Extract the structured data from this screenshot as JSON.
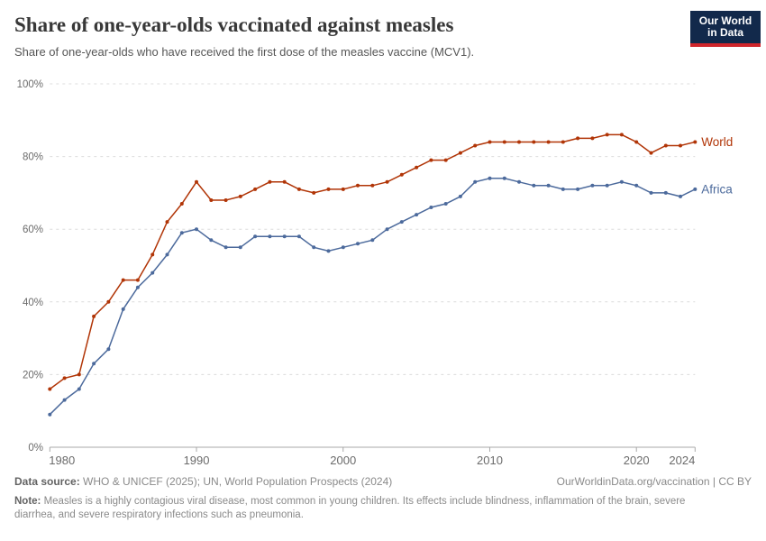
{
  "header": {
    "title": "Share of one-year-olds vaccinated against measles",
    "subtitle": "Share of one-year-olds who have received the first dose of the measles vaccine (MCV1).",
    "logo": {
      "line1": "Our World",
      "line2": "in Data",
      "bg_color": "#12294B",
      "stripe_color": "#D0262C"
    }
  },
  "chart_data": {
    "type": "line",
    "title": "Share of one-year-olds vaccinated against measles",
    "xlabel": "",
    "ylabel": "",
    "ylim": [
      0,
      100
    ],
    "yticks": [
      0,
      20,
      40,
      60,
      80,
      100
    ],
    "y_tick_labels": [
      "0%",
      "20%",
      "40%",
      "60%",
      "80%",
      "100%"
    ],
    "xticks": [
      1980,
      1990,
      2000,
      2010,
      2020,
      2024
    ],
    "x_tick_labels": [
      "1980",
      "1990",
      "2000",
      "2010",
      "2020",
      "2024"
    ],
    "grid": "horizontal-dashed",
    "legend_position": "line-end-labels",
    "x": [
      1980,
      1981,
      1982,
      1983,
      1984,
      1985,
      1986,
      1987,
      1988,
      1989,
      1990,
      1991,
      1992,
      1993,
      1994,
      1995,
      1996,
      1997,
      1998,
      1999,
      2000,
      2001,
      2002,
      2003,
      2004,
      2005,
      2006,
      2007,
      2008,
      2009,
      2010,
      2011,
      2012,
      2013,
      2014,
      2015,
      2016,
      2017,
      2018,
      2019,
      2020,
      2021,
      2022,
      2023,
      2024
    ],
    "series": [
      {
        "name": "World",
        "color": "#B13507",
        "values": [
          16,
          19,
          20,
          36,
          40,
          46,
          46,
          53,
          62,
          67,
          73,
          68,
          68,
          69,
          71,
          73,
          73,
          71,
          70,
          71,
          71,
          72,
          72,
          73,
          75,
          77,
          79,
          79,
          81,
          83,
          84,
          84,
          84,
          84,
          84,
          84,
          85,
          85,
          86,
          86,
          84,
          81,
          83,
          83,
          84
        ]
      },
      {
        "name": "Africa",
        "color": "#4C6A9C",
        "values": [
          9,
          13,
          16,
          23,
          27,
          38,
          44,
          48,
          53,
          59,
          60,
          57,
          55,
          55,
          58,
          58,
          58,
          58,
          55,
          54,
          55,
          56,
          57,
          60,
          62,
          64,
          66,
          67,
          69,
          73,
          74,
          74,
          73,
          72,
          72,
          71,
          71,
          72,
          72,
          73,
          72,
          70,
          70,
          69,
          71
        ]
      }
    ]
  },
  "footer": {
    "datasource_label": "Data source:",
    "datasource_text": " WHO & UNICEF (2025); UN, World Population Prospects (2024)",
    "link_text": "OurWorldinData.org/vaccination | CC BY",
    "note_label": "Note:",
    "note_text": " Measles is a highly contagious viral disease, most common in young children. Its effects include blindness, inflammation of the brain, severe diarrhea, and severe respiratory infections such as pneumonia."
  },
  "colors": {
    "grid": "#dcdcdc",
    "axis": "#a8a8a8",
    "tick_label": "#6b6b6b"
  }
}
